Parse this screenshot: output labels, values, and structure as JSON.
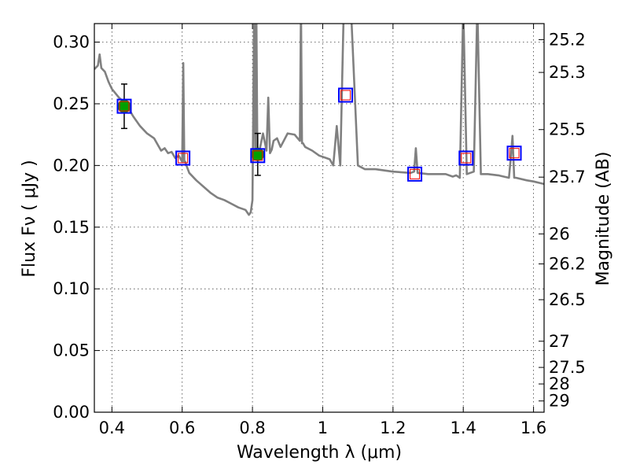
{
  "chart_data": {
    "type": "line",
    "xlabel": "Wavelength  λ (μm)",
    "ylabel": "Flux  Fν  ( μJy )",
    "y2label": "Magnitude (AB)",
    "xlim": [
      0.35,
      1.63
    ],
    "ylim": [
      0.0,
      0.315
    ],
    "grid": true,
    "x_ticks": [
      0.4,
      0.6,
      0.8,
      1.0,
      1.2,
      1.4,
      1.6
    ],
    "x_tick_labels": [
      "0.4",
      "0.6",
      "0.8",
      "1",
      "1.2",
      "1.4",
      "1.6"
    ],
    "y_ticks": [
      0.0,
      0.05,
      0.1,
      0.15,
      0.2,
      0.25,
      0.3
    ],
    "y_tick_labels": [
      "0.00",
      "0.05",
      "0.10",
      "0.15",
      "0.20",
      "0.25",
      "0.30"
    ],
    "mag_ticks": [
      "25.2",
      "25.3",
      "25.5",
      "25.7",
      "26",
      "26.2",
      "26.5",
      "27",
      "27.5",
      "28",
      "29"
    ],
    "colors": {
      "model": "#808080",
      "observed": "#00a000",
      "model_box": "#0000ff",
      "model_inner": "#ff0000",
      "errorbar": "#000000"
    },
    "series": [
      {
        "type": "line",
        "x": [
          0.35,
          0.36,
          0.365,
          0.37,
          0.38,
          0.39,
          0.4,
          0.42,
          0.44,
          0.46,
          0.48,
          0.5,
          0.52,
          0.54,
          0.55,
          0.56,
          0.57,
          0.58,
          0.59,
          0.6,
          0.603,
          0.606,
          0.609,
          0.612,
          0.62,
          0.64,
          0.66,
          0.68,
          0.7,
          0.72,
          0.74,
          0.76,
          0.78,
          0.79,
          0.795,
          0.8,
          0.805,
          0.808,
          0.811,
          0.814,
          0.817,
          0.82,
          0.83,
          0.84,
          0.845,
          0.85,
          0.855,
          0.86,
          0.87,
          0.88,
          0.9,
          0.92,
          0.935,
          0.938,
          0.941,
          0.944,
          0.95,
          0.97,
          0.99,
          1.01,
          1.02,
          1.03,
          1.04,
          1.05,
          1.06,
          1.08,
          1.1,
          1.12,
          1.15,
          1.2,
          1.25,
          1.26,
          1.265,
          1.27,
          1.3,
          1.35,
          1.37,
          1.38,
          1.39,
          1.4,
          1.41,
          1.43,
          1.44,
          1.45,
          1.47,
          1.5,
          1.53,
          1.535,
          1.54,
          1.545,
          1.55,
          1.58,
          1.6,
          1.63
        ],
        "y": [
          0.278,
          0.281,
          0.29,
          0.279,
          0.276,
          0.268,
          0.262,
          0.255,
          0.25,
          0.24,
          0.232,
          0.226,
          0.222,
          0.212,
          0.214,
          0.21,
          0.211,
          0.206,
          0.208,
          0.203,
          0.283,
          0.203,
          0.203,
          0.2,
          0.194,
          0.188,
          0.183,
          0.178,
          0.174,
          0.172,
          0.169,
          0.166,
          0.164,
          0.16,
          0.162,
          0.172,
          0.33,
          0.205,
          0.33,
          0.205,
          0.212,
          0.212,
          0.226,
          0.212,
          0.255,
          0.21,
          0.213,
          0.22,
          0.222,
          0.215,
          0.226,
          0.225,
          0.22,
          0.33,
          0.218,
          0.218,
          0.215,
          0.212,
          0.208,
          0.206,
          0.205,
          0.2,
          0.232,
          0.2,
          0.33,
          0.33,
          0.2,
          0.197,
          0.197,
          0.195,
          0.194,
          0.195,
          0.214,
          0.194,
          0.193,
          0.193,
          0.191,
          0.192,
          0.19,
          0.33,
          0.193,
          0.195,
          0.33,
          0.193,
          0.193,
          0.192,
          0.19,
          0.205,
          0.224,
          0.19,
          0.19,
          0.188,
          0.187,
          0.185
        ]
      },
      {
        "type": "scatter",
        "x": [
          0.435,
          0.815
        ],
        "y": [
          0.248,
          0.209
        ],
        "yerr": [
          0.018,
          0.017
        ]
      },
      {
        "type": "scatter",
        "x": [
          0.435,
          0.602,
          0.815,
          1.065,
          1.262,
          1.408,
          1.545
        ],
        "y": [
          0.248,
          0.206,
          0.208,
          0.257,
          0.193,
          0.206,
          0.21
        ]
      }
    ]
  }
}
